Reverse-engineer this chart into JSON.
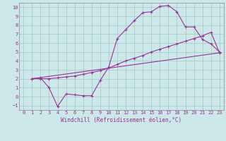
{
  "xlabel": "Windchill (Refroidissement éolien,°C)",
  "background_color": "#cce8e8",
  "grid_color": "#aacccc",
  "line_color": "#993399",
  "xlim": [
    -0.5,
    23.5
  ],
  "ylim": [
    -1.5,
    10.5
  ],
  "xticks": [
    0,
    1,
    2,
    3,
    4,
    5,
    6,
    7,
    8,
    9,
    10,
    11,
    12,
    13,
    14,
    15,
    16,
    17,
    18,
    19,
    20,
    21,
    22,
    23
  ],
  "yticks": [
    -1,
    0,
    1,
    2,
    3,
    4,
    5,
    6,
    7,
    8,
    9,
    10
  ],
  "line1_x": [
    1,
    2,
    3,
    4,
    5,
    6,
    7,
    8,
    9,
    10,
    11,
    12,
    13,
    14,
    15,
    16,
    17,
    18,
    19,
    20,
    21,
    22,
    23
  ],
  "line1_y": [
    2.0,
    2.1,
    1.0,
    -1.1,
    0.3,
    0.2,
    0.1,
    0.1,
    1.8,
    3.3,
    6.5,
    7.5,
    8.5,
    9.4,
    9.5,
    10.1,
    10.2,
    9.5,
    7.8,
    7.8,
    6.4,
    5.9,
    5.0
  ],
  "line2_x": [
    1,
    2,
    3,
    4,
    5,
    6,
    7,
    8,
    9,
    10,
    11,
    12,
    13,
    14,
    15,
    16,
    17,
    18,
    19,
    20,
    21,
    22,
    23
  ],
  "line2_y": [
    2.0,
    2.0,
    2.0,
    2.1,
    2.2,
    2.3,
    2.5,
    2.7,
    2.9,
    3.2,
    3.6,
    4.0,
    4.3,
    4.6,
    5.0,
    5.3,
    5.6,
    5.9,
    6.2,
    6.5,
    6.8,
    7.2,
    4.9
  ],
  "line3_x": [
    1,
    23
  ],
  "line3_y": [
    2.0,
    4.9
  ],
  "xlabel_fontsize": 5.5,
  "tick_fontsize": 5.0
}
